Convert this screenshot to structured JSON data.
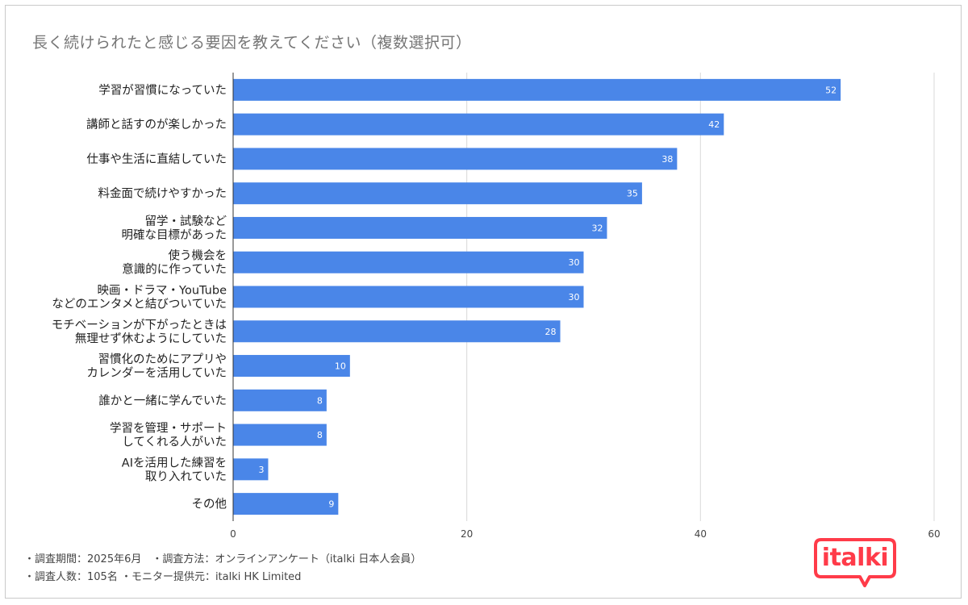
{
  "chart_data": {
    "type": "bar",
    "orientation": "horizontal",
    "title": "長く続けられたと感じる要因を教えてください（複数選択可）",
    "categories": [
      [
        "学習が習慣になっていた"
      ],
      [
        "講師と話すのが楽しかった"
      ],
      [
        "仕事や生活に直結していた"
      ],
      [
        "料金面で続けやすかった"
      ],
      [
        "留学・試験など",
        "明確な目標があった"
      ],
      [
        "使う機会を",
        "意識的に作っていた"
      ],
      [
        "映画・ドラマ・YouTube",
        "などのエンタメと結びついていた"
      ],
      [
        "モチベーションが下がったときは",
        "無理せず休むようにしていた"
      ],
      [
        "習慣化のためにアプリや",
        "カレンダーを活用していた"
      ],
      [
        "誰かと一緒に学んでいた"
      ],
      [
        "学習を管理・サポート",
        "してくれる人がいた"
      ],
      [
        "AIを活用した練習を",
        "取り入れていた"
      ],
      [
        "その他"
      ]
    ],
    "values": [
      52,
      42,
      38,
      35,
      32,
      30,
      30,
      28,
      10,
      8,
      8,
      3,
      9
    ],
    "xlim": [
      0,
      60
    ],
    "xticks": [
      0,
      20,
      40,
      60
    ],
    "xlabel": "",
    "ylabel": "",
    "grid": true,
    "bar_color": "#4a86e8",
    "data_labels": true
  },
  "footer": {
    "line1": "・調査期間：2025年6月　・調査方法：オンラインアンケート（italki 日本人会員）",
    "line2": "・調査人数：105名 ・モニター提供元：italki HK Limited"
  },
  "logo": {
    "text": "italki",
    "color": "#ff3b49"
  }
}
